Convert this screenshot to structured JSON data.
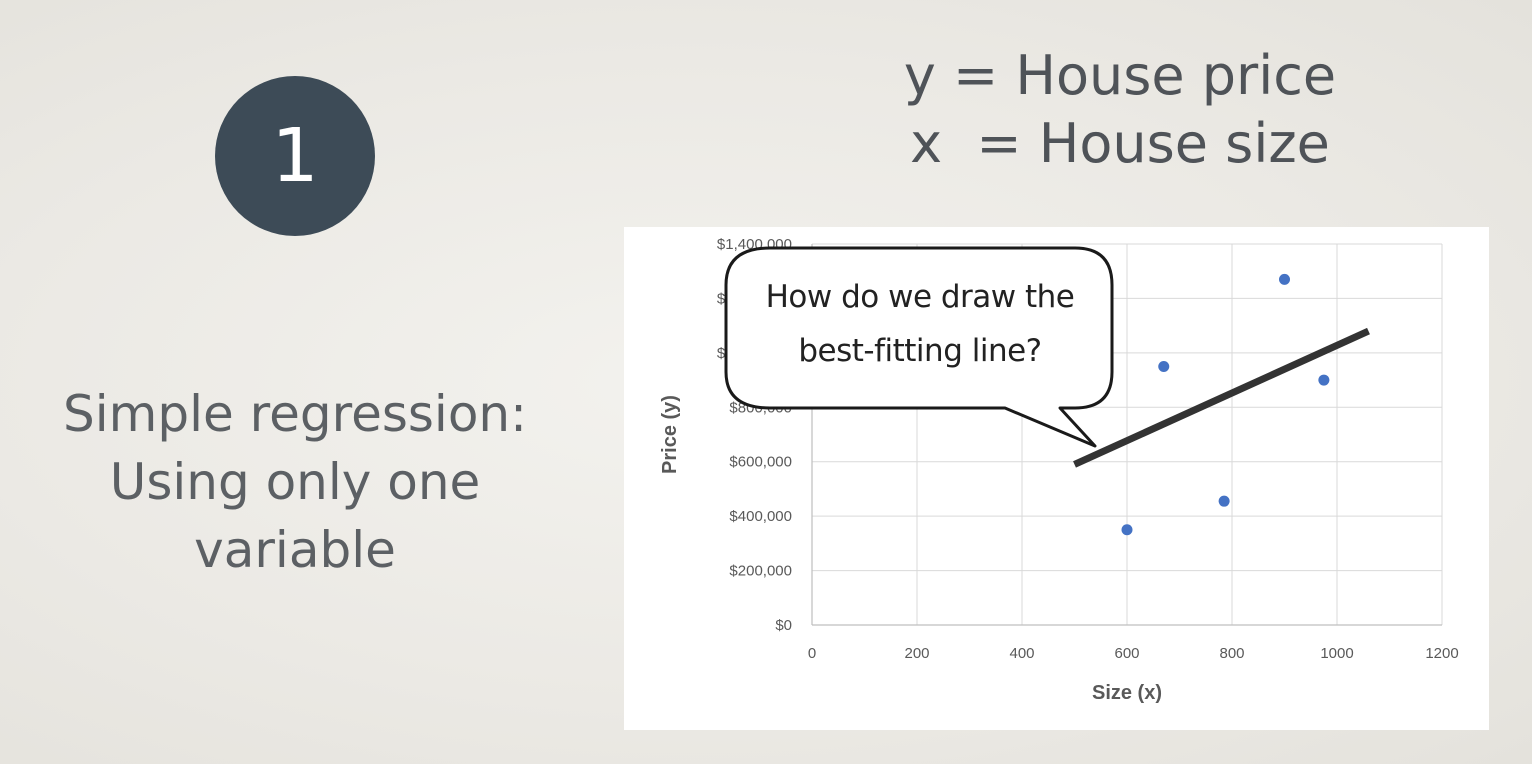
{
  "slide": {
    "number_badge": "1",
    "equation_y": "y = House price",
    "equation_x": "x  = House size",
    "description_lines": [
      "Simple regression:",
      "Using only one",
      "variable"
    ],
    "callout_lines": [
      "How do we draw the",
      "best-fitting line?"
    ]
  },
  "colors": {
    "badge": "#3d4b57",
    "point": "#4472c4",
    "fit_line": "#333333",
    "grid": "#d9d9d9"
  },
  "chart_data": {
    "type": "scatter",
    "title": "",
    "xlabel": "Size (x)",
    "ylabel": "Price (y)",
    "xlim": [
      0,
      1200
    ],
    "ylim": [
      0,
      1400000
    ],
    "x_ticks": [
      "0",
      "200",
      "400",
      "600",
      "800",
      "1000",
      "1200"
    ],
    "y_ticks": [
      "$0",
      "$200,000",
      "$400,000",
      "$600,000",
      "$800,000",
      "$1,000,000",
      "$1,200,000",
      "$1,400,000"
    ],
    "grid": true,
    "points": [
      {
        "x": 600,
        "y": 350000
      },
      {
        "x": 670,
        "y": 950000
      },
      {
        "x": 785,
        "y": 455000
      },
      {
        "x": 900,
        "y": 1270000
      },
      {
        "x": 975,
        "y": 900000
      }
    ],
    "fit_line": {
      "x": [
        500,
        1060
      ],
      "y": [
        590000,
        1080000
      ]
    }
  }
}
